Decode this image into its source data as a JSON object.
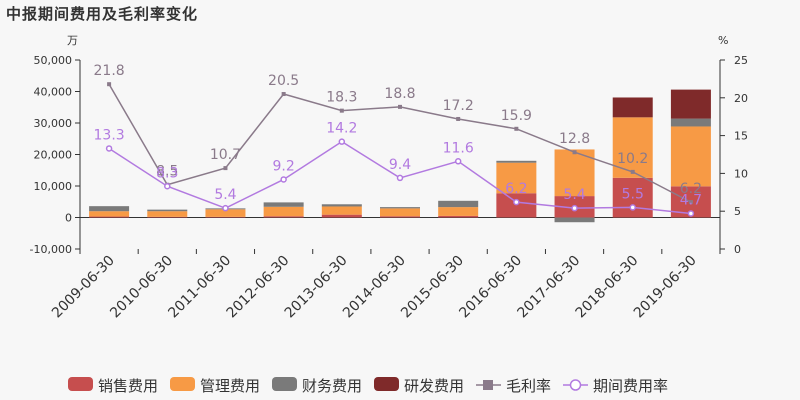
{
  "title": "中报期间费用及毛利率变化",
  "chart_data": {
    "type": "bar",
    "stacked": true,
    "categories": [
      "2009-06-30",
      "2010-06-30",
      "2011-06-30",
      "2012-06-30",
      "2013-06-30",
      "2014-06-30",
      "2015-06-30",
      "2016-06-30",
      "2017-06-30",
      "2018-06-30",
      "2019-06-30"
    ],
    "y_left": {
      "unit": "万",
      "ylim": [
        -10000,
        50000
      ],
      "ticks": [
        "-10,000",
        "0",
        "10,000",
        "20,000",
        "30,000",
        "40,000",
        "50,000"
      ]
    },
    "y_right": {
      "unit": "%",
      "ylim": [
        0,
        25
      ],
      "ticks": [
        "0",
        "5",
        "10",
        "15",
        "20",
        "25"
      ]
    },
    "series": [
      {
        "name": "销售费用",
        "kind": "bar",
        "color": "#c64e4e",
        "values": [
          300,
          200,
          200,
          400,
          900,
          400,
          500,
          7700,
          6800,
          12600,
          9900
        ]
      },
      {
        "name": "管理费用",
        "kind": "bar",
        "color": "#f79a45",
        "values": [
          1700,
          1800,
          2400,
          3000,
          2600,
          2500,
          2800,
          9700,
          14800,
          19200,
          19000
        ]
      },
      {
        "name": "财务费用",
        "kind": "bar",
        "color": "#7a7a7a",
        "values": [
          1600,
          500,
          300,
          1400,
          700,
          400,
          2000,
          600,
          -1500,
          0,
          2500
        ]
      },
      {
        "name": "研发费用",
        "kind": "bar",
        "color": "#7f2a2a",
        "values": [
          0,
          0,
          0,
          0,
          0,
          0,
          0,
          0,
          0,
          6300,
          9200
        ]
      },
      {
        "name": "毛利率",
        "kind": "line",
        "axis": "right",
        "color": "#8a7a8a",
        "values": [
          21.8,
          8.5,
          10.7,
          20.5,
          18.3,
          18.8,
          17.2,
          15.9,
          12.8,
          10.2,
          6.2
        ],
        "labels": [
          "21.8",
          "8.5",
          "10.7",
          "20.5",
          "18.3",
          "18.8",
          "17.2",
          "15.9",
          "12.8",
          "10.2",
          "6.2"
        ]
      },
      {
        "name": "期间费用率",
        "kind": "line",
        "axis": "right",
        "color": "#b27ae0",
        "values": [
          13.3,
          8.3,
          5.4,
          9.2,
          14.2,
          9.4,
          11.6,
          6.2,
          5.4,
          5.5,
          4.7
        ],
        "labels": [
          "13.3",
          "8.3",
          "5.4",
          "9.2",
          "14.2",
          "9.4",
          "11.6",
          "6.2",
          "5.4",
          "5.5",
          "4.7"
        ]
      }
    ],
    "grid": false,
    "legend": "bottom"
  }
}
